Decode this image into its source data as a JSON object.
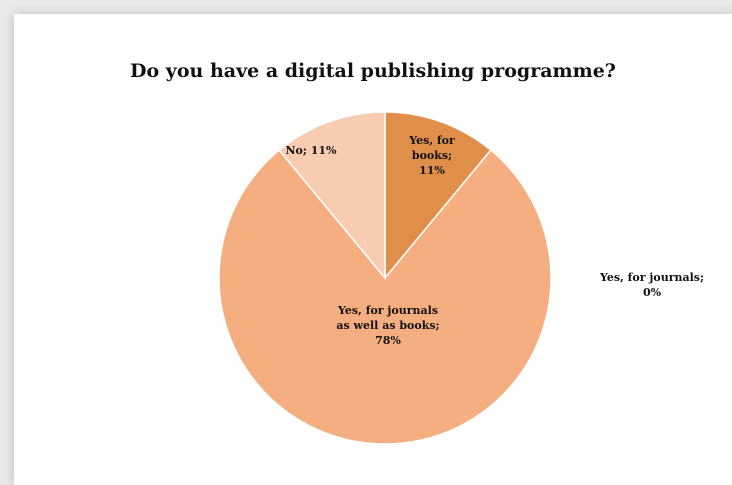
{
  "chart_data": {
    "type": "pie",
    "title": "Do you have a digital publishing programme?",
    "slices": [
      {
        "label": "Yes, for books",
        "value": 11,
        "label_text": "Yes, for books; 11%",
        "color": "#e08f4a",
        "lines": [
          "Yes, for",
          "books;",
          "11%"
        ]
      },
      {
        "label": "Yes, for journals",
        "value": 0,
        "label_text": "Yes, for journals; 0%",
        "color": "#ee9b5e",
        "lines": [
          "Yes, for journals;",
          "0%"
        ]
      },
      {
        "label": "Yes, for journals as well as books",
        "value": 78,
        "label_text": "Yes, for journals as well as books; 78%",
        "color": "#f4ae7f",
        "lines": [
          "Yes, for journals",
          "as well as books;",
          "78%"
        ]
      },
      {
        "label": "No",
        "value": 11,
        "label_text": "No; 11%",
        "color": "#f7ccb1",
        "lines": [
          "No; 11%"
        ]
      }
    ]
  }
}
